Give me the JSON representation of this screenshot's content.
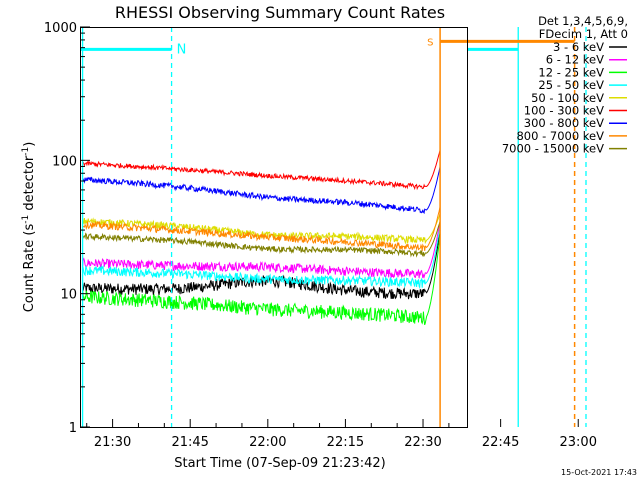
{
  "chart_data": {
    "type": "line",
    "title": "RHESSI Observing Summary Count Rates",
    "xlabel": "Start Time (07-Sep-09 21:23:42)",
    "ylabel_main": "Count Rate (s",
    "ylabel_sup1": "-1",
    "ylabel_mid": " detector",
    "ylabel_sup2": "-1",
    "ylabel_end": ")",
    "y_scale": "log",
    "ylim": [
      1,
      1000
    ],
    "xlim_minutes": [
      23.7,
      98.5
    ],
    "x_ticks": [
      {
        "label": "21:30",
        "t": 30
      },
      {
        "label": "21:45",
        "t": 45
      },
      {
        "label": "22:00",
        "t": 60
      },
      {
        "label": "22:15",
        "t": 75
      },
      {
        "label": "22:30",
        "t": 90
      },
      {
        "label": "22:45",
        "t": 105
      },
      {
        "label": "23:00",
        "t": 120
      }
    ],
    "y_ticks": [
      {
        "label": "1",
        "v": 1
      },
      {
        "label": "10",
        "v": 10
      },
      {
        "label": "100",
        "v": 100
      },
      {
        "label": "1000",
        "v": 1000
      }
    ],
    "legend_header": [
      "Det 1,3,4,5,6,9,",
      "FDecim 1, Att 0"
    ],
    "series": [
      {
        "name": "3 - 6 keV",
        "color": "#000000",
        "start": 11.0,
        "hump": 12.5,
        "end": 10.0,
        "jitter": 0.1,
        "peak": 30
      },
      {
        "name": "6 - 12 keV",
        "color": "#ff00ff",
        "start": 17.0,
        "hump": 16.0,
        "end": 14.0,
        "jitter": 0.08,
        "peak": 35
      },
      {
        "name": "12 - 25 keV",
        "color": "#00ff00",
        "start": 9.5,
        "hump": 7.8,
        "end": 6.6,
        "jitter": 0.12,
        "peak": 28
      },
      {
        "name": "25 - 50 keV",
        "color": "#00ffff",
        "start": 15.0,
        "hump": 13.0,
        "end": 12.0,
        "jitter": 0.08,
        "peak": 32
      },
      {
        "name": "50 - 100 keV",
        "color": "#dddd00",
        "start": 35.0,
        "hump": 28.0,
        "end": 25.0,
        "jitter": 0.06,
        "peak": 40
      },
      {
        "name": "100 - 300 keV",
        "color": "#ff0000",
        "start": 95.0,
        "hump": 78.0,
        "end": 63.0,
        "jitter": 0.04,
        "peak": 120
      },
      {
        "name": "300 - 800 keV",
        "color": "#0000ff",
        "start": 72.0,
        "hump": 54.0,
        "end": 42.0,
        "jitter": 0.05,
        "peak": 90
      },
      {
        "name": "800 - 7000 keV",
        "color": "#ff8800",
        "start": 33.0,
        "hump": 27.0,
        "end": 22.0,
        "jitter": 0.06,
        "peak": 45
      },
      {
        "name": "7000 - 15000 keV",
        "color": "#808000",
        "start": 27.0,
        "hump": 22.0,
        "end": 20.0,
        "jitter": 0.05,
        "peak": 35
      }
    ],
    "data_end_t": 90.5,
    "rise_end_t": 93.3,
    "annotations": {
      "night_label": "N",
      "saa_label": "S",
      "night_bars": [
        {
          "t0": 23.7,
          "t1": 41.4,
          "v": 680
        },
        {
          "t0": 108.4,
          "t1": 121.5,
          "v": 680
        }
      ],
      "night_lines": [
        {
          "t": 24.2,
          "style": "solid"
        },
        {
          "t": 41.4,
          "style": "dashed"
        },
        {
          "t": 108.4,
          "style": "solid"
        },
        {
          "t": 121.5,
          "style": "dashed"
        }
      ],
      "saa_bars": [
        {
          "t0": 93.3,
          "t1": 119.3,
          "v": 780
        }
      ],
      "saa_lines": [
        {
          "t": 93.3,
          "style": "solid"
        },
        {
          "t": 119.3,
          "style": "dashed"
        }
      ]
    },
    "colors": {
      "night": "#00ffff",
      "saa": "#ff8800"
    },
    "grid": false,
    "legend_position": "right"
  },
  "footer_timestamp": "15-Oct-2021 17:43"
}
